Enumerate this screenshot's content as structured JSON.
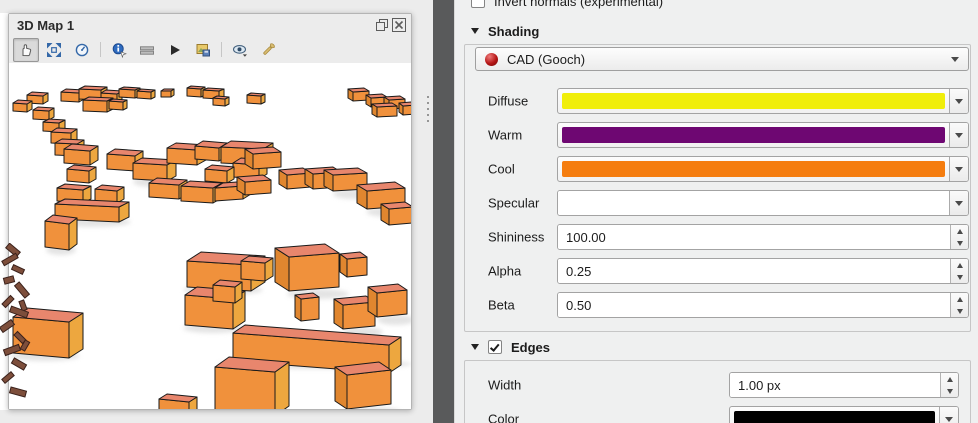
{
  "window": {
    "title": "3D Map 1",
    "titlebar_buttons": [
      "float-window",
      "close-window"
    ],
    "toolbar_icons": [
      "pan-camera",
      "zoom-full",
      "rotate-camera",
      "identify",
      "measure-line",
      "animations",
      "save-as-image",
      "camera-visibility",
      "configure"
    ]
  },
  "panel": {
    "invert_normals": {
      "label": "Invert normals (experimental)",
      "checked": false
    },
    "shading": {
      "header": "Shading",
      "technique": "CAD (Gooch)",
      "rows": [
        {
          "label": "Diffuse",
          "type": "color",
          "value": "#f0ee0a"
        },
        {
          "label": "Warm",
          "type": "color",
          "value": "#6e0772"
        },
        {
          "label": "Cool",
          "type": "color",
          "value": "#f57d0f"
        },
        {
          "label": "Specular",
          "type": "color",
          "value": "#ffffff"
        },
        {
          "label": "Shininess",
          "type": "spin",
          "value": "100.00"
        },
        {
          "label": "Alpha",
          "type": "spin",
          "value": "0.25"
        },
        {
          "label": "Beta",
          "type": "spin",
          "value": "0.50"
        }
      ]
    },
    "edges": {
      "header": "Edges",
      "checked": true,
      "rows": [
        {
          "label": "Width",
          "type": "spin",
          "value": "1.00 px"
        },
        {
          "label": "Color",
          "type": "color",
          "value": "#000000"
        }
      ]
    }
  },
  "scene": {
    "colors": {
      "background": "#ffffff",
      "top": "#e8866d",
      "front": "#f0913c",
      "side_right": "#eda73f",
      "side_left": "#e0862f",
      "edge": "#1a1a1a",
      "shadow": "#cdcdcd",
      "debris": "#7d4e3b",
      "debris_edge": "#3a211b"
    },
    "buildings": [
      [
        18,
        40,
        16,
        8,
        5,
        3,
        1,
        0
      ],
      [
        4,
        48,
        14,
        8,
        5,
        3,
        1,
        0
      ],
      [
        24,
        56,
        16,
        9,
        5,
        3,
        1,
        0
      ],
      [
        34,
        68,
        16,
        9,
        6,
        3,
        1,
        0
      ],
      [
        42,
        80,
        20,
        11,
        6,
        4,
        1,
        0
      ],
      [
        46,
        92,
        22,
        12,
        7,
        4,
        1,
        0
      ],
      [
        52,
        38,
        18,
        9,
        5,
        3,
        1,
        0
      ],
      [
        70,
        36,
        22,
        10,
        6,
        3,
        1,
        0
      ],
      [
        92,
        38,
        16,
        8,
        5,
        3,
        1,
        0
      ],
      [
        74,
        48,
        24,
        11,
        6,
        3,
        1,
        0
      ],
      [
        100,
        46,
        14,
        8,
        4,
        2,
        1,
        0
      ],
      [
        110,
        34,
        16,
        8,
        5,
        2,
        1,
        0
      ],
      [
        128,
        35,
        14,
        7,
        4,
        2,
        1,
        0
      ],
      [
        152,
        34,
        10,
        6,
        3,
        2,
        0,
        0
      ],
      [
        178,
        33,
        14,
        8,
        4,
        2,
        1,
        0
      ],
      [
        194,
        35,
        16,
        8,
        5,
        2,
        1,
        0
      ],
      [
        204,
        42,
        12,
        7,
        4,
        2,
        1,
        0
      ],
      [
        238,
        40,
        14,
        8,
        4,
        2,
        1,
        0
      ],
      [
        344,
        38,
        16,
        9,
        -5,
        3,
        -1,
        0
      ],
      [
        362,
        44,
        16,
        9,
        -5,
        3,
        -1,
        0
      ],
      [
        380,
        46,
        16,
        9,
        -5,
        3,
        -1,
        0
      ],
      [
        368,
        54,
        20,
        10,
        -5,
        3,
        -1,
        0
      ],
      [
        394,
        52,
        12,
        9,
        -4,
        3,
        -1,
        0
      ],
      [
        55,
        100,
        26,
        14,
        8,
        5,
        2,
        0
      ],
      [
        58,
        118,
        22,
        12,
        7,
        4,
        2,
        0
      ],
      [
        98,
        106,
        28,
        15,
        8,
        5,
        2,
        0
      ],
      [
        124,
        116,
        34,
        16,
        9,
        5,
        2,
        1
      ],
      [
        158,
        100,
        30,
        15,
        9,
        5,
        2,
        0
      ],
      [
        186,
        96,
        24,
        13,
        8,
        5,
        2,
        0
      ],
      [
        212,
        100,
        42,
        16,
        10,
        6,
        2,
        1
      ],
      [
        224,
        114,
        26,
        14,
        8,
        5,
        2,
        0
      ],
      [
        196,
        118,
        22,
        12,
        7,
        4,
        2,
        0
      ],
      [
        244,
        106,
        28,
        15,
        -8,
        5,
        -2,
        0
      ],
      [
        278,
        126,
        24,
        14,
        -8,
        5,
        -2,
        0
      ],
      [
        304,
        126,
        28,
        15,
        -8,
        5,
        -2,
        0
      ],
      [
        324,
        128,
        34,
        16,
        -9,
        5,
        -2,
        1
      ],
      [
        358,
        146,
        38,
        18,
        -10,
        6,
        -3,
        1
      ],
      [
        48,
        138,
        26,
        13,
        8,
        4,
        2,
        0
      ],
      [
        86,
        138,
        22,
        12,
        7,
        4,
        2,
        0
      ],
      [
        46,
        156,
        64,
        15,
        10,
        5,
        3,
        1
      ],
      [
        140,
        134,
        30,
        14,
        8,
        5,
        2,
        0
      ],
      [
        172,
        138,
        32,
        15,
        9,
        5,
        2,
        0
      ],
      [
        206,
        138,
        28,
        13,
        8,
        5,
        -2,
        0
      ],
      [
        236,
        132,
        26,
        13,
        -8,
        5,
        -2,
        0
      ],
      [
        380,
        162,
        24,
        16,
        -8,
        5,
        -2,
        0
      ],
      [
        36,
        184,
        24,
        26,
        8,
        6,
        3,
        1
      ],
      [
        4,
        290,
        56,
        36,
        14,
        9,
        5,
        1
      ],
      [
        178,
        224,
        64,
        26,
        14,
        9,
        4,
        1
      ],
      [
        232,
        216,
        24,
        18,
        8,
        5,
        2,
        0
      ],
      [
        176,
        262,
        48,
        30,
        12,
        8,
        4,
        1
      ],
      [
        204,
        238,
        22,
        16,
        7,
        5,
        2,
        0
      ],
      [
        280,
        228,
        50,
        34,
        -14,
        9,
        -4,
        1
      ],
      [
        338,
        214,
        20,
        18,
        -7,
        5,
        -2,
        0
      ],
      [
        292,
        258,
        18,
        22,
        -6,
        4,
        -2,
        0
      ],
      [
        334,
        266,
        32,
        24,
        -9,
        6,
        -3,
        1
      ],
      [
        368,
        254,
        30,
        24,
        -9,
        6,
        -3,
        1
      ],
      [
        224,
        298,
        156,
        28,
        12,
        8,
        12,
        1
      ],
      [
        206,
        348,
        60,
        44,
        14,
        10,
        5,
        1
      ],
      [
        338,
        346,
        44,
        34,
        -12,
        8,
        -5,
        1
      ],
      [
        150,
        354,
        30,
        18,
        8,
        5,
        3,
        0
      ]
    ],
    "debris": [
      [
        6,
        4,
        14,
        6,
        40
      ],
      [
        2,
        14,
        16,
        5,
        -30
      ],
      [
        12,
        24,
        12,
        5,
        25
      ],
      [
        4,
        34,
        10,
        6,
        -15
      ],
      [
        14,
        44,
        16,
        6,
        50
      ],
      [
        2,
        56,
        12,
        5,
        -45
      ],
      [
        18,
        60,
        10,
        5,
        70
      ],
      [
        10,
        66,
        18,
        6,
        20
      ],
      [
        0,
        80,
        14,
        6,
        -35
      ],
      [
        14,
        92,
        12,
        5,
        45
      ],
      [
        20,
        100,
        10,
        5,
        -60
      ],
      [
        4,
        104,
        16,
        6,
        -20
      ],
      [
        12,
        118,
        14,
        6,
        30
      ],
      [
        2,
        132,
        12,
        5,
        -40
      ],
      [
        10,
        146,
        16,
        6,
        15
      ]
    ]
  }
}
